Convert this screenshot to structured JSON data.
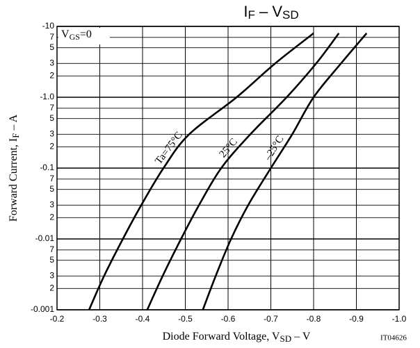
{
  "chart_data": {
    "type": "line",
    "title": [
      "I",
      "F",
      " – V",
      "SD"
    ],
    "x_label": [
      "Diode Forward Voltage, V",
      "SD",
      " – V"
    ],
    "y_label": [
      "Forward Current, I",
      "F",
      " – A"
    ],
    "condition": [
      "V",
      "GS",
      "=0"
    ],
    "code": "IT04626",
    "log_y": true,
    "grid": true,
    "xlim": [
      -0.2,
      -1.0
    ],
    "ylim": [
      -0.001,
      -10
    ],
    "xticks": [
      -0.2,
      -0.3,
      -0.4,
      -0.5,
      -0.6,
      -0.7,
      -0.8,
      -0.9,
      {
        "value": -1.0,
        "label": "-1.0"
      }
    ],
    "yticks": [
      -10,
      {
        "value": -7,
        "label": "7"
      },
      {
        "value": -5,
        "label": "5"
      },
      {
        "value": -3,
        "label": "3"
      },
      {
        "value": -2,
        "label": "2"
      },
      {
        "value": -1.0,
        "label": "-1.0"
      },
      {
        "value": -0.7,
        "label": "7"
      },
      {
        "value": -0.5,
        "label": "5"
      },
      {
        "value": -0.3,
        "label": "3"
      },
      {
        "value": -0.2,
        "label": "2"
      },
      -0.1,
      {
        "value": -0.07,
        "label": "7"
      },
      {
        "value": -0.05,
        "label": "5"
      },
      {
        "value": -0.03,
        "label": "3"
      },
      {
        "value": -0.02,
        "label": "2"
      },
      -0.01,
      {
        "value": -0.007,
        "label": "7"
      },
      {
        "value": -0.005,
        "label": "5"
      },
      {
        "value": -0.003,
        "label": "3"
      },
      {
        "value": -0.002,
        "label": "2"
      },
      -0.001
    ],
    "series": [
      {
        "name": "Ta=75°C",
        "color": "#000000",
        "x": [
          -0.275,
          -0.31,
          -0.354,
          -0.397,
          -0.449,
          -0.509,
          -0.62,
          -0.71,
          -0.8
        ],
        "values": [
          -0.001,
          -0.003,
          -0.01,
          -0.03,
          -0.1,
          -0.3,
          -1,
          -3,
          -8
        ]
      },
      {
        "name": "25°C",
        "color": "#000000",
        "x": [
          -0.411,
          -0.447,
          -0.49,
          -0.532,
          -0.584,
          -0.652,
          -0.737,
          -0.806,
          -0.859
        ],
        "values": [
          -0.001,
          -0.003,
          -0.01,
          -0.03,
          -0.1,
          -0.3,
          -1,
          -3,
          -8
        ]
      },
      {
        "name": "–25°C",
        "color": "#000000",
        "x": [
          -0.541,
          -0.571,
          -0.607,
          -0.647,
          -0.7,
          -0.75,
          -0.8,
          -0.864,
          -0.924
        ],
        "values": [
          -0.001,
          -0.003,
          -0.01,
          -0.03,
          -0.1,
          -0.3,
          -1,
          -3,
          -8
        ]
      }
    ]
  }
}
